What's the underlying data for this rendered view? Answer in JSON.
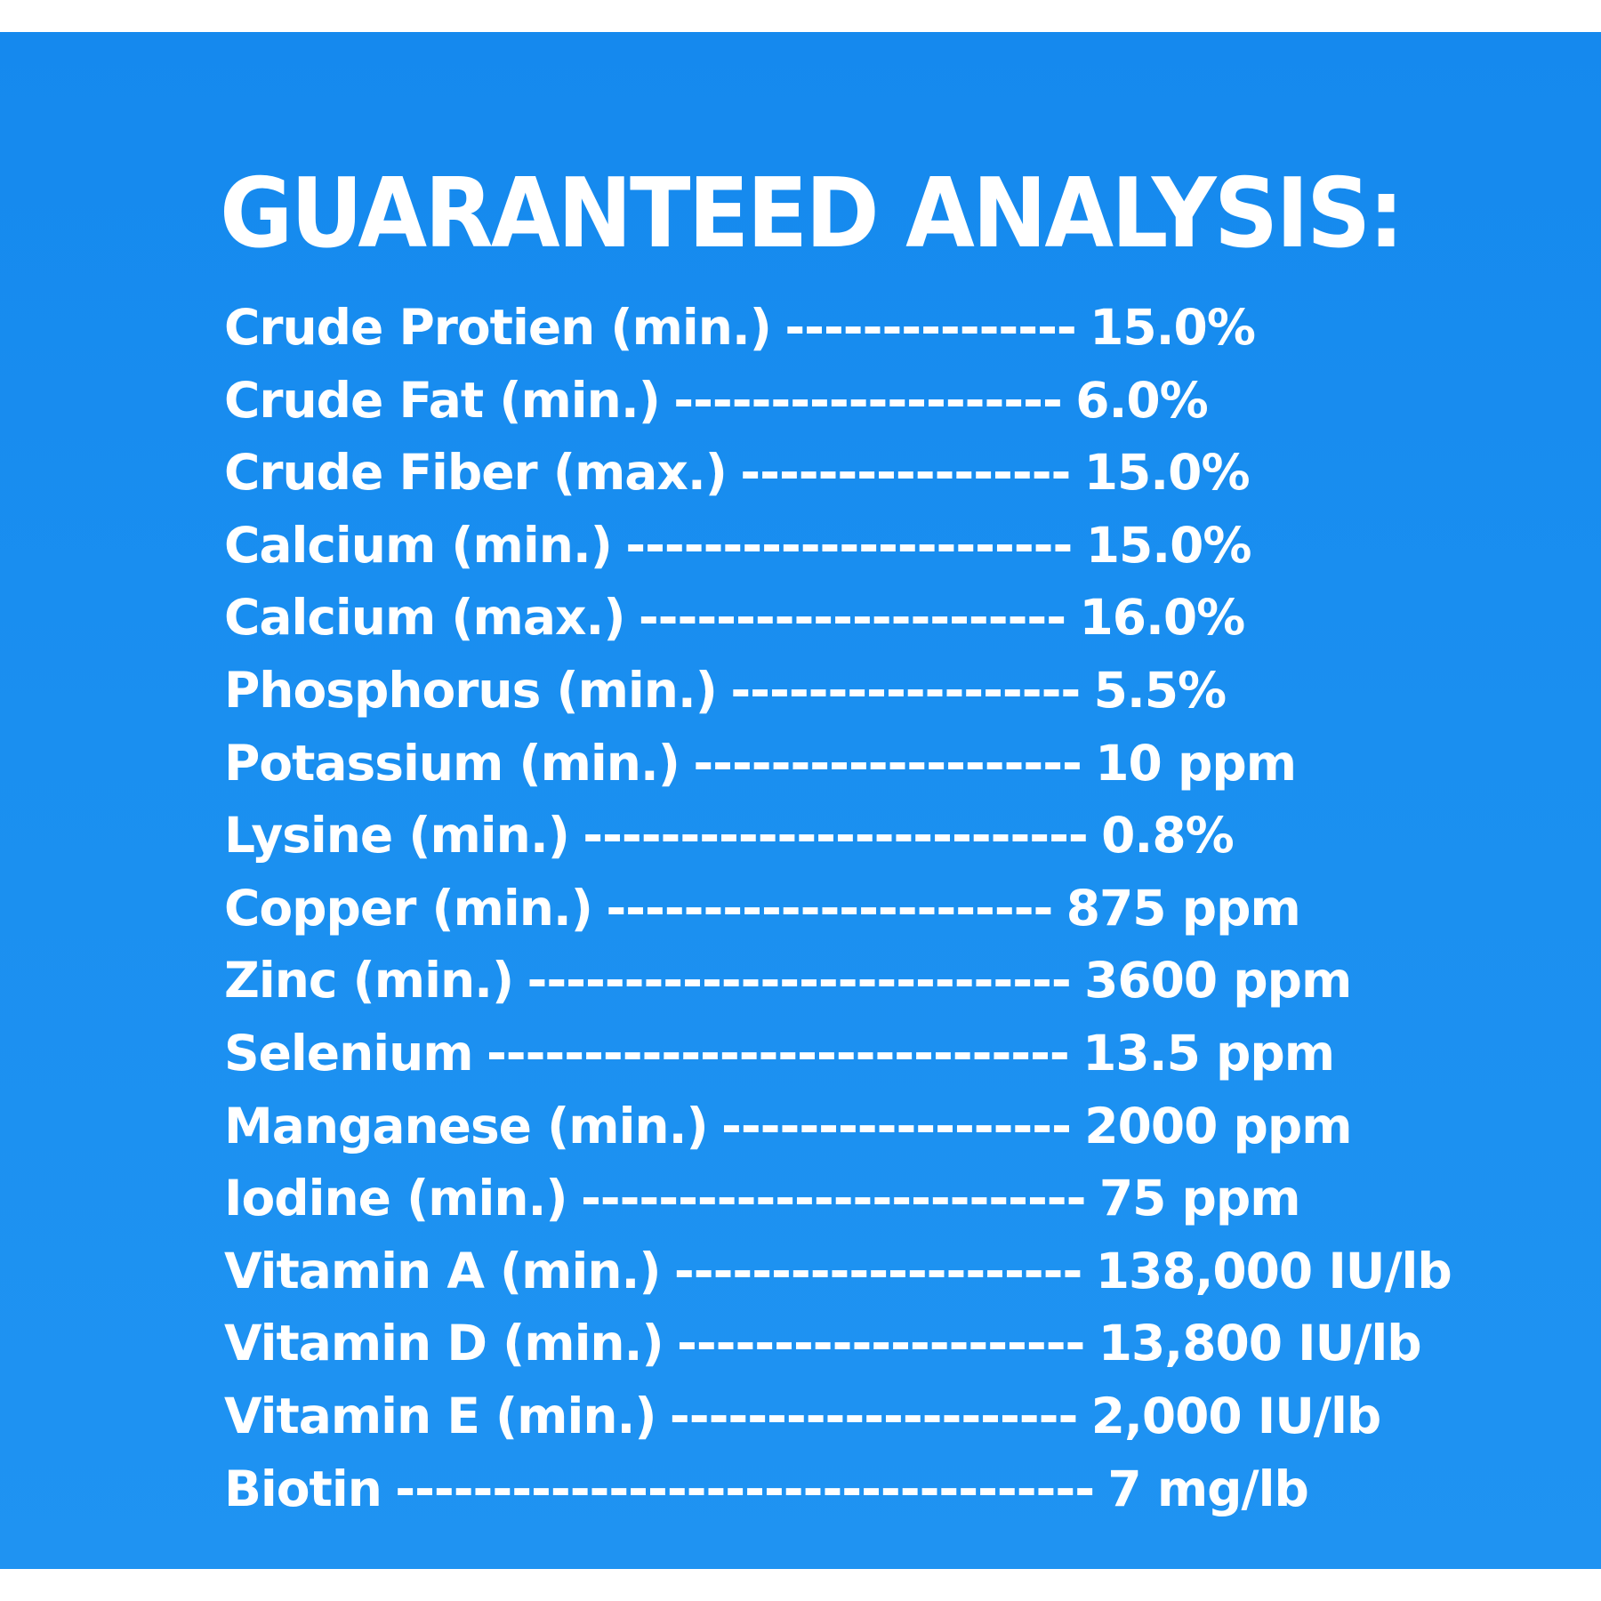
{
  "title": "GUARANTEED ANALYSIS:",
  "rows": [
    {
      "label": "Crude Protien (min.)",
      "leader": "---------------",
      "value": "15.0%"
    },
    {
      "label": "Crude Fat (min.)",
      "leader": "--------------------",
      "value": "6.0%"
    },
    {
      "label": "Crude Fiber (max.)",
      "leader": "-----------------",
      "value": "15.0%"
    },
    {
      "label": "Calcium (min.)",
      "leader": "-----------------------",
      "value": "15.0%"
    },
    {
      "label": "Calcium (max.)",
      "leader": "----------------------",
      "value": "16.0%"
    },
    {
      "label": "Phosphorus (min.)",
      "leader": "------------------",
      "value": "5.5%"
    },
    {
      "label": "Potassium (min.)",
      "leader": "--------------------",
      "value": "10 ppm"
    },
    {
      "label": "Lysine (min.)",
      "leader": "--------------------------",
      "value": "0.8%"
    },
    {
      "label": "Copper (min.)",
      "leader": "-----------------------",
      "value": "875 ppm"
    },
    {
      "label": "Zinc (min.)",
      "leader": "----------------------------",
      "value": "3600 ppm"
    },
    {
      "label": "Selenium",
      "leader": "------------------------------",
      "value": "13.5 ppm"
    },
    {
      "label": "Manganese (min.)",
      "leader": "------------------",
      "value": "2000 ppm"
    },
    {
      "label": "Iodine (min.)",
      "leader": "--------------------------",
      "value": "75 ppm"
    },
    {
      "label": "Vitamin A (min.)",
      "leader": "---------------------",
      "value": "138,000 IU/lb"
    },
    {
      "label": "Vitamin D (min.)",
      "leader": "---------------------",
      "value": "13,800 IU/lb"
    },
    {
      "label": "Vitamin E (min.)",
      "leader": "---------------------",
      "value": "2,000 IU/lb"
    },
    {
      "label": "Biotin",
      "leader": "------------------------------------",
      "value": "7 mg/lb"
    }
  ],
  "colors": {
    "background": "#1a8ff0",
    "text": "#ffffff"
  }
}
